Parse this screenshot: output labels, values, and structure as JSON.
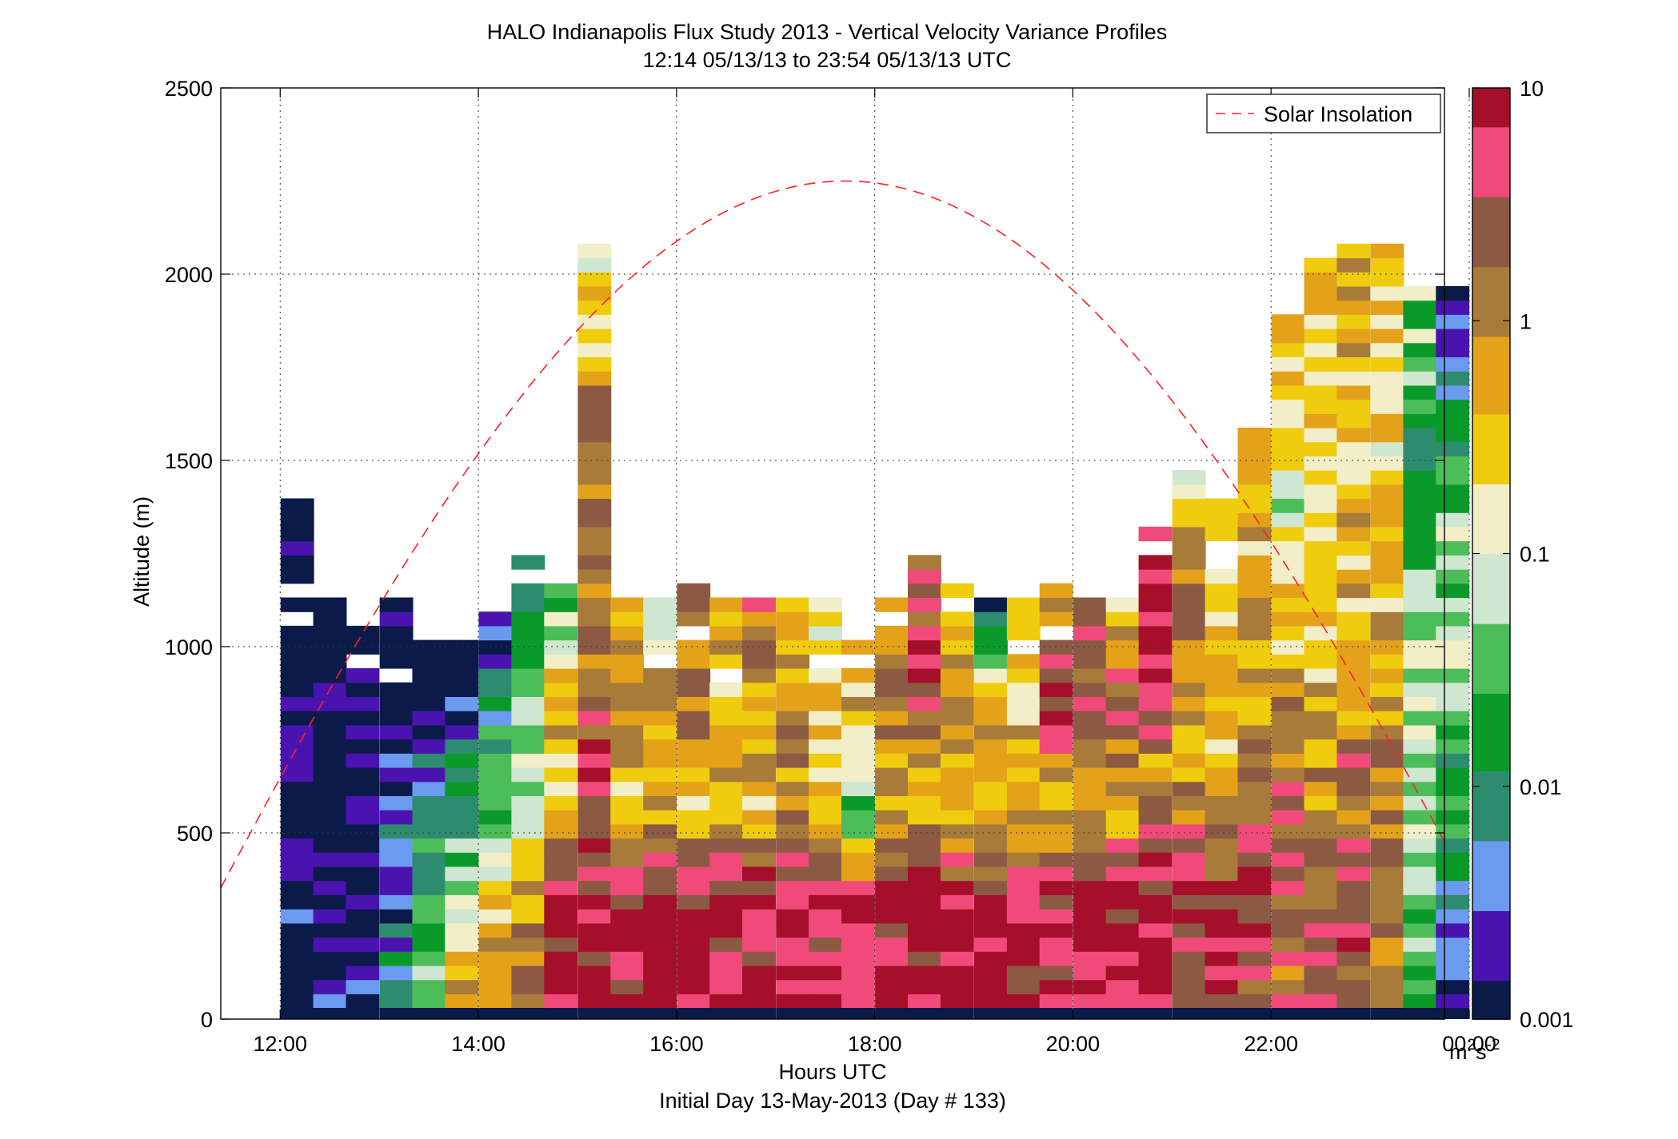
{
  "chart_data": {
    "type": "heatmap",
    "title": "HALO Indianapolis Flux Study 2013 - Vertical Velocity Variance Profiles",
    "subtitle": "12:14 05/13/13 to 23:54 05/13/13  UTC",
    "xlabel": "Hours UTC",
    "xlabel2": "Initial Day 13-May-2013 (Day # 133)",
    "ylabel": "Altitude (m)",
    "colorbar_label_base": "m",
    "colorbar_label_exp1": "2",
    "colorbar_label_mid": "s",
    "colorbar_label_exp2": "-2",
    "x_range_hours": [
      11.4,
      23.75
    ],
    "x_ticks": [
      {
        "h": 12,
        "label": "12:00"
      },
      {
        "h": 14,
        "label": "14:00"
      },
      {
        "h": 16,
        "label": "16:00"
      },
      {
        "h": 18,
        "label": "18:00"
      },
      {
        "h": 20,
        "label": "20:00"
      },
      {
        "h": 22,
        "label": "22:00"
      },
      {
        "h": 24,
        "label": "00:00"
      }
    ],
    "y_range": [
      0,
      2500
    ],
    "y_ticks": [
      {
        "v": 0,
        "label": "0"
      },
      {
        "v": 500,
        "label": "500"
      },
      {
        "v": 1000,
        "label": "1000"
      },
      {
        "v": 1500,
        "label": "1500"
      },
      {
        "v": 2000,
        "label": "2000"
      },
      {
        "v": 2500,
        "label": "2500"
      }
    ],
    "color_scale": "log",
    "color_range": [
      0.001,
      10
    ],
    "colorbar_ticks": [
      {
        "v": 10,
        "label": "10"
      },
      {
        "v": 1,
        "label": "1"
      },
      {
        "v": 0.1,
        "label": "0.1"
      },
      {
        "v": 0.01,
        "label": "0.01"
      },
      {
        "v": 0.001,
        "label": "0.001"
      }
    ],
    "colormap": [
      "#0c1a4a",
      "#4a13b0",
      "#6a9bf0",
      "#2e8c6e",
      "#0a9a2a",
      "#4dbd5a",
      "#cfe6d0",
      "#f2eec8",
      "#f0cc0f",
      "#e3a21a",
      "#a87b3a",
      "#8c5a42",
      "#f04a7a",
      "#a60f2a"
    ],
    "grid": true,
    "legend": {
      "location": "top-right",
      "entries": [
        {
          "name": "Solar Insolation",
          "color": "#ff2020",
          "style": "dashed"
        }
      ]
    },
    "bin_width_hours": 0.333,
    "bin_height_m": 38,
    "series": [
      {
        "name": "Solar Insolation",
        "curve": {
          "peak_hour": 17.7,
          "peak_altitude_m": 2250,
          "half_width_hours": 7.0
        }
      },
      {
        "name": "variance_profiles",
        "columns": [
          {
            "t": 12.17,
            "top": 1400,
            "levels": [
              0.0015,
              0.0015,
              0.001,
              0.001,
              0.001,
              0.001,
              0.001,
              0.001,
              0.001
            ]
          },
          {
            "t": 12.5,
            "top": 1150,
            "levels": [
              0.0015,
              0.001,
              0.001,
              0.001,
              0.001,
              0.001
            ]
          },
          {
            "t": 12.83,
            "top": 1080,
            "levels": [
              0.003,
              0.001,
              0.001,
              0.001,
              0.001
            ]
          },
          {
            "t": 13.17,
            "top": 1150,
            "levels": [
              0.01,
              0.003,
              0.002,
              0.001,
              0.001
            ]
          },
          {
            "t": 13.5,
            "top": 1080,
            "levels": [
              0.05,
              0.02,
              0.01,
              0.001,
              0.001
            ]
          },
          {
            "t": 13.83,
            "top": 1050,
            "levels": [
              0.5,
              0.2,
              0.01,
              0.005,
              0.001
            ]
          },
          {
            "t": 14.17,
            "top": 1120,
            "levels": [
              0.5,
              0.3,
              0.03,
              0.01,
              0.002
            ]
          },
          {
            "t": 14.5,
            "top": 1250,
            "levels": [
              3.0,
              0.5,
              0.1,
              0.05,
              0.01
            ]
          },
          {
            "t": 14.83,
            "top": 1200,
            "levels": [
              8.0,
              5.0,
              0.3,
              0.6,
              0.02
            ]
          },
          {
            "t": 15.17,
            "top": 2100,
            "levels": [
              8.0,
              6.0,
              1.0,
              2.0,
              0.1
            ]
          },
          {
            "t": 15.5,
            "top": 1180,
            "levels": [
              8.0,
              7.0,
              0.3,
              2.0,
              0.5
            ]
          },
          {
            "t": 15.83,
            "top": 1150,
            "levels": [
              8.0,
              8.0,
              0.5,
              1.0,
              0.1
            ]
          },
          {
            "t": 16.17,
            "top": 1180,
            "levels": [
              8.0,
              7.0,
              0.3,
              2.0,
              1.0
            ]
          },
          {
            "t": 16.5,
            "top": 1150,
            "levels": [
              8.0,
              7.0,
              0.5,
              0.5,
              0.5
            ]
          },
          {
            "t": 16.83,
            "top": 1150,
            "levels": [
              8.0,
              6.0,
              0.4,
              0.5,
              2.0
            ]
          },
          {
            "t": 17.17,
            "top": 1150,
            "levels": [
              8.0,
              5.0,
              0.5,
              1.0,
              0.3
            ]
          },
          {
            "t": 17.5,
            "top": 1150,
            "levels": [
              6.0,
              5.0,
              0.5,
              0.3,
              0.2
            ]
          },
          {
            "t": 17.83,
            "top": 1120,
            "levels": [
              8.0,
              6.0,
              0.02,
              0.6,
              0.2
            ]
          },
          {
            "t": 18.17,
            "top": 1150,
            "levels": [
              8.0,
              8.0,
              0.5,
              2.0,
              0.3
            ]
          },
          {
            "t": 18.5,
            "top": 1250,
            "levels": [
              8.0,
              8.0,
              0.3,
              8.0,
              2.0
            ]
          },
          {
            "t": 18.83,
            "top": 1200,
            "levels": [
              8.0,
              8.0,
              0.3,
              1.0,
              0.4
            ]
          },
          {
            "t": 19.17,
            "top": 1150,
            "levels": [
              8.0,
              7.0,
              0.3,
              0.5,
              0.002
            ]
          },
          {
            "t": 19.5,
            "top": 1150,
            "levels": [
              7.0,
              8.0,
              0.5,
              0.3,
              0.5
            ]
          },
          {
            "t": 19.83,
            "top": 1180,
            "levels": [
              8.0,
              8.0,
              0.4,
              5.0,
              0.5
            ]
          },
          {
            "t": 20.17,
            "top": 1150,
            "levels": [
              8.0,
              8.0,
              0.5,
              3.0,
              2.0
            ]
          },
          {
            "t": 20.5,
            "top": 1150,
            "levels": [
              8.0,
              8.0,
              0.4,
              4.0,
              0.3
            ]
          },
          {
            "t": 20.83,
            "top": 1330,
            "levels": [
              7.0,
              8.0,
              1.0,
              8.0,
              8.0
            ]
          },
          {
            "t": 21.17,
            "top": 1490,
            "levels": [
              6.0,
              5.0,
              0.3,
              2.0,
              0.2
            ]
          },
          {
            "t": 21.5,
            "top": 1400,
            "levels": [
              5.0,
              4.0,
              0.3,
              0.4,
              0.3
            ]
          },
          {
            "t": 21.83,
            "top": 1600,
            "levels": [
              3.0,
              6.0,
              0.5,
              0.5,
              0.6
            ]
          },
          {
            "t": 22.17,
            "top": 1920,
            "levels": [
              2.0,
              3.0,
              0.5,
              0.1,
              0.5
            ]
          },
          {
            "t": 22.5,
            "top": 2070,
            "levels": [
              3.0,
              1.0,
              0.3,
              0.2,
              0.4
            ]
          },
          {
            "t": 22.83,
            "top": 2090,
            "levels": [
              4.0,
              2.0,
              0.4,
              0.3,
              0.5
            ]
          },
          {
            "t": 23.17,
            "top": 2090,
            "levels": [
              2.0,
              1.0,
              0.6,
              0.2,
              0.3
            ]
          },
          {
            "t": 23.5,
            "top": 2000,
            "levels": [
              0.03,
              0.04,
              0.1,
              0.02,
              0.05
            ]
          },
          {
            "t": 23.83,
            "top": 2000,
            "levels": [
              0.002,
              0.02,
              0.05,
              0.03,
              0.001
            ]
          }
        ]
      }
    ]
  }
}
